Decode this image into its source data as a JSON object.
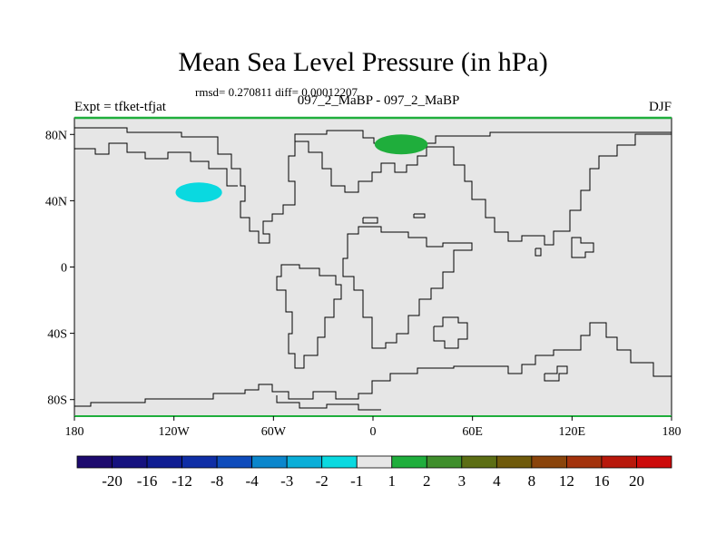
{
  "chart_data": {
    "type": "heatmap",
    "title": "Mean Sea Level Pressure (in hPa)",
    "stats_text": "rmsd= 0.270811 diff= 0.00012207",
    "left_label": "Expt = tfket-tfjat",
    "center_label": "097_2_MaBP - 097_2_MaBP",
    "right_label": "DJF",
    "projection": "cylindrical equidistant",
    "xlim": [
      -180,
      180
    ],
    "ylim": [
      -90,
      90
    ],
    "x_ticks": [
      {
        "value": -180,
        "label": "180"
      },
      {
        "value": -120,
        "label": "120W"
      },
      {
        "value": -60,
        "label": "60W"
      },
      {
        "value": 0,
        "label": "0"
      },
      {
        "value": 60,
        "label": "60E"
      },
      {
        "value": 120,
        "label": "120E"
      },
      {
        "value": 180,
        "label": "180"
      }
    ],
    "y_ticks": [
      {
        "value": 80,
        "label": "80N"
      },
      {
        "value": 40,
        "label": "40N"
      },
      {
        "value": 0,
        "label": "0"
      },
      {
        "value": -40,
        "label": "40S"
      },
      {
        "value": -80,
        "label": "80S"
      }
    ],
    "background_fill": "#e6e6e6",
    "features": [
      {
        "lon": -105,
        "lat": 45,
        "dlon": 14,
        "dlat": 6,
        "color": "#0ad9e0",
        "interval": "-2 to -1"
      },
      {
        "lon": 17,
        "lat": 74,
        "dlon": 16,
        "dlat": 6,
        "color": "#1fae3c",
        "interval": "1 to 2"
      }
    ],
    "colorbar": {
      "labels": [
        "-20",
        "-16",
        "-12",
        "-8",
        "-4",
        "-3",
        "-2",
        "-1",
        "1",
        "2",
        "3",
        "4",
        "8",
        "12",
        "16",
        "20"
      ],
      "colors": [
        "#1d0a6e",
        "#16127f",
        "#0f1d92",
        "#0f2ea6",
        "#0e4bbb",
        "#0b86cc",
        "#0aaed8",
        "#0ad9e0",
        "#e6e6e6",
        "#1fae3c",
        "#3f8e2c",
        "#5c6e14",
        "#6f5a0b",
        "#8a440b",
        "#a3320c",
        "#b8180b",
        "#cc0a0a"
      ]
    }
  }
}
